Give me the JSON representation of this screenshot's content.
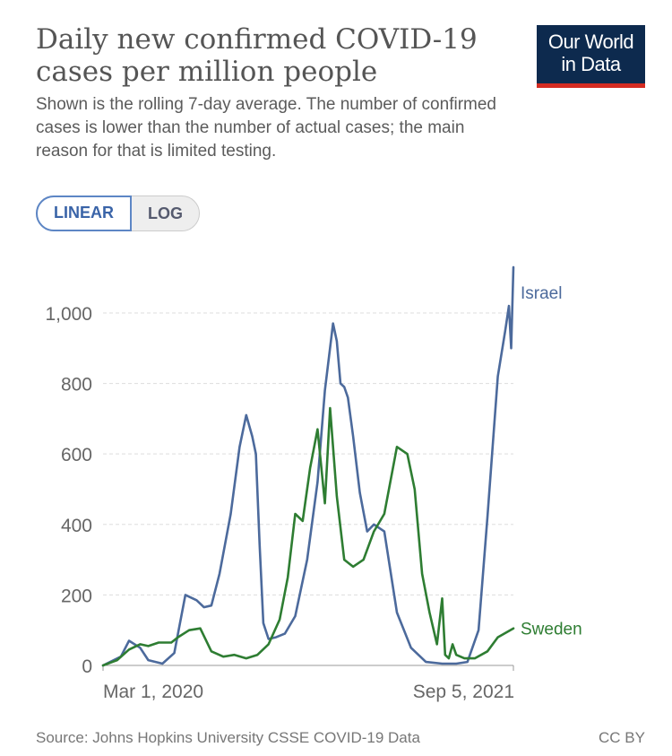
{
  "header": {
    "title": "Daily new confirmed COVID-19 cases per million people",
    "subtitle": "Shown is the rolling 7-day average. The number of confirmed cases is lower than the number of actual cases; the main reason for that is limited testing.",
    "logo_line1": "Our World",
    "logo_line2": "in Data"
  },
  "controls": {
    "linear_label": "LINEAR",
    "log_label": "LOG",
    "selected": "LINEAR"
  },
  "footer": {
    "source": "Source: Johns Hopkins University CSSE COVID-19 Data",
    "license": "CC BY"
  },
  "colors": {
    "israel": "#4c6a9c",
    "sweden": "#2e7d32",
    "grid": "#dddddd",
    "axis_text": "#666666"
  },
  "chart_data": {
    "type": "line",
    "title": "Daily new confirmed COVID-19 cases per million people",
    "xlabel": "",
    "ylabel": "",
    "x_range": [
      "2020-03-01",
      "2021-09-05"
    ],
    "x_tick_labels": [
      "Mar 1, 2020",
      "Sep 5, 2021"
    ],
    "ylim": [
      0,
      1150
    ],
    "y_ticks": [
      0,
      200,
      400,
      600,
      800,
      1000
    ],
    "y_tick_labels": [
      "0",
      "200",
      "400",
      "600",
      "800",
      "1,000"
    ],
    "grid": true,
    "legend": "inline-right",
    "series": [
      {
        "name": "Israel",
        "color": "#4c6a9c",
        "x": [
          "2020-03-01",
          "2020-03-25",
          "2020-04-05",
          "2020-04-20",
          "2020-05-01",
          "2020-05-20",
          "2020-06-05",
          "2020-06-20",
          "2020-07-05",
          "2020-07-15",
          "2020-07-25",
          "2020-08-05",
          "2020-08-20",
          "2020-09-01",
          "2020-09-10",
          "2020-09-18",
          "2020-09-23",
          "2020-09-28",
          "2020-10-03",
          "2020-10-10",
          "2020-10-20",
          "2020-11-01",
          "2020-11-15",
          "2020-12-01",
          "2020-12-15",
          "2020-12-25",
          "2021-01-05",
          "2021-01-10",
          "2021-01-15",
          "2021-01-20",
          "2021-01-25",
          "2021-02-01",
          "2021-02-10",
          "2021-02-20",
          "2021-03-01",
          "2021-03-15",
          "2021-04-01",
          "2021-04-20",
          "2021-05-10",
          "2021-06-01",
          "2021-06-20",
          "2021-07-05",
          "2021-07-20",
          "2021-08-01",
          "2021-08-15",
          "2021-08-25",
          "2021-08-30",
          "2021-09-02",
          "2021-09-05"
        ],
        "values": [
          0,
          25,
          70,
          50,
          15,
          5,
          35,
          200,
          185,
          165,
          170,
          260,
          430,
          620,
          710,
          650,
          600,
          340,
          120,
          75,
          80,
          90,
          140,
          300,
          520,
          780,
          970,
          920,
          800,
          790,
          760,
          650,
          490,
          380,
          400,
          380,
          150,
          50,
          10,
          5,
          5,
          10,
          100,
          420,
          820,
          950,
          1020,
          900,
          1130
        ]
      },
      {
        "name": "Sweden",
        "color": "#2e7d32",
        "x": [
          "2020-03-01",
          "2020-03-20",
          "2020-04-05",
          "2020-04-20",
          "2020-05-01",
          "2020-05-15",
          "2020-06-01",
          "2020-06-10",
          "2020-06-25",
          "2020-07-10",
          "2020-07-25",
          "2020-08-10",
          "2020-08-25",
          "2020-09-10",
          "2020-09-25",
          "2020-10-10",
          "2020-10-25",
          "2020-11-05",
          "2020-11-15",
          "2020-11-25",
          "2020-12-05",
          "2020-12-15",
          "2020-12-25",
          "2021-01-01",
          "2021-01-10",
          "2021-01-20",
          "2021-02-01",
          "2021-02-15",
          "2021-03-01",
          "2021-03-15",
          "2021-04-01",
          "2021-04-15",
          "2021-04-25",
          "2021-05-05",
          "2021-05-15",
          "2021-05-25",
          "2021-06-01",
          "2021-06-05",
          "2021-06-10",
          "2021-06-15",
          "2021-06-20",
          "2021-07-01",
          "2021-07-15",
          "2021-08-01",
          "2021-08-15",
          "2021-09-05"
        ],
        "values": [
          0,
          15,
          45,
          60,
          55,
          65,
          65,
          80,
          100,
          105,
          40,
          25,
          30,
          20,
          30,
          60,
          130,
          250,
          430,
          410,
          560,
          670,
          460,
          730,
          480,
          300,
          280,
          300,
          380,
          430,
          620,
          600,
          500,
          260,
          150,
          60,
          190,
          30,
          20,
          60,
          30,
          20,
          20,
          40,
          80,
          105
        ]
      }
    ]
  }
}
